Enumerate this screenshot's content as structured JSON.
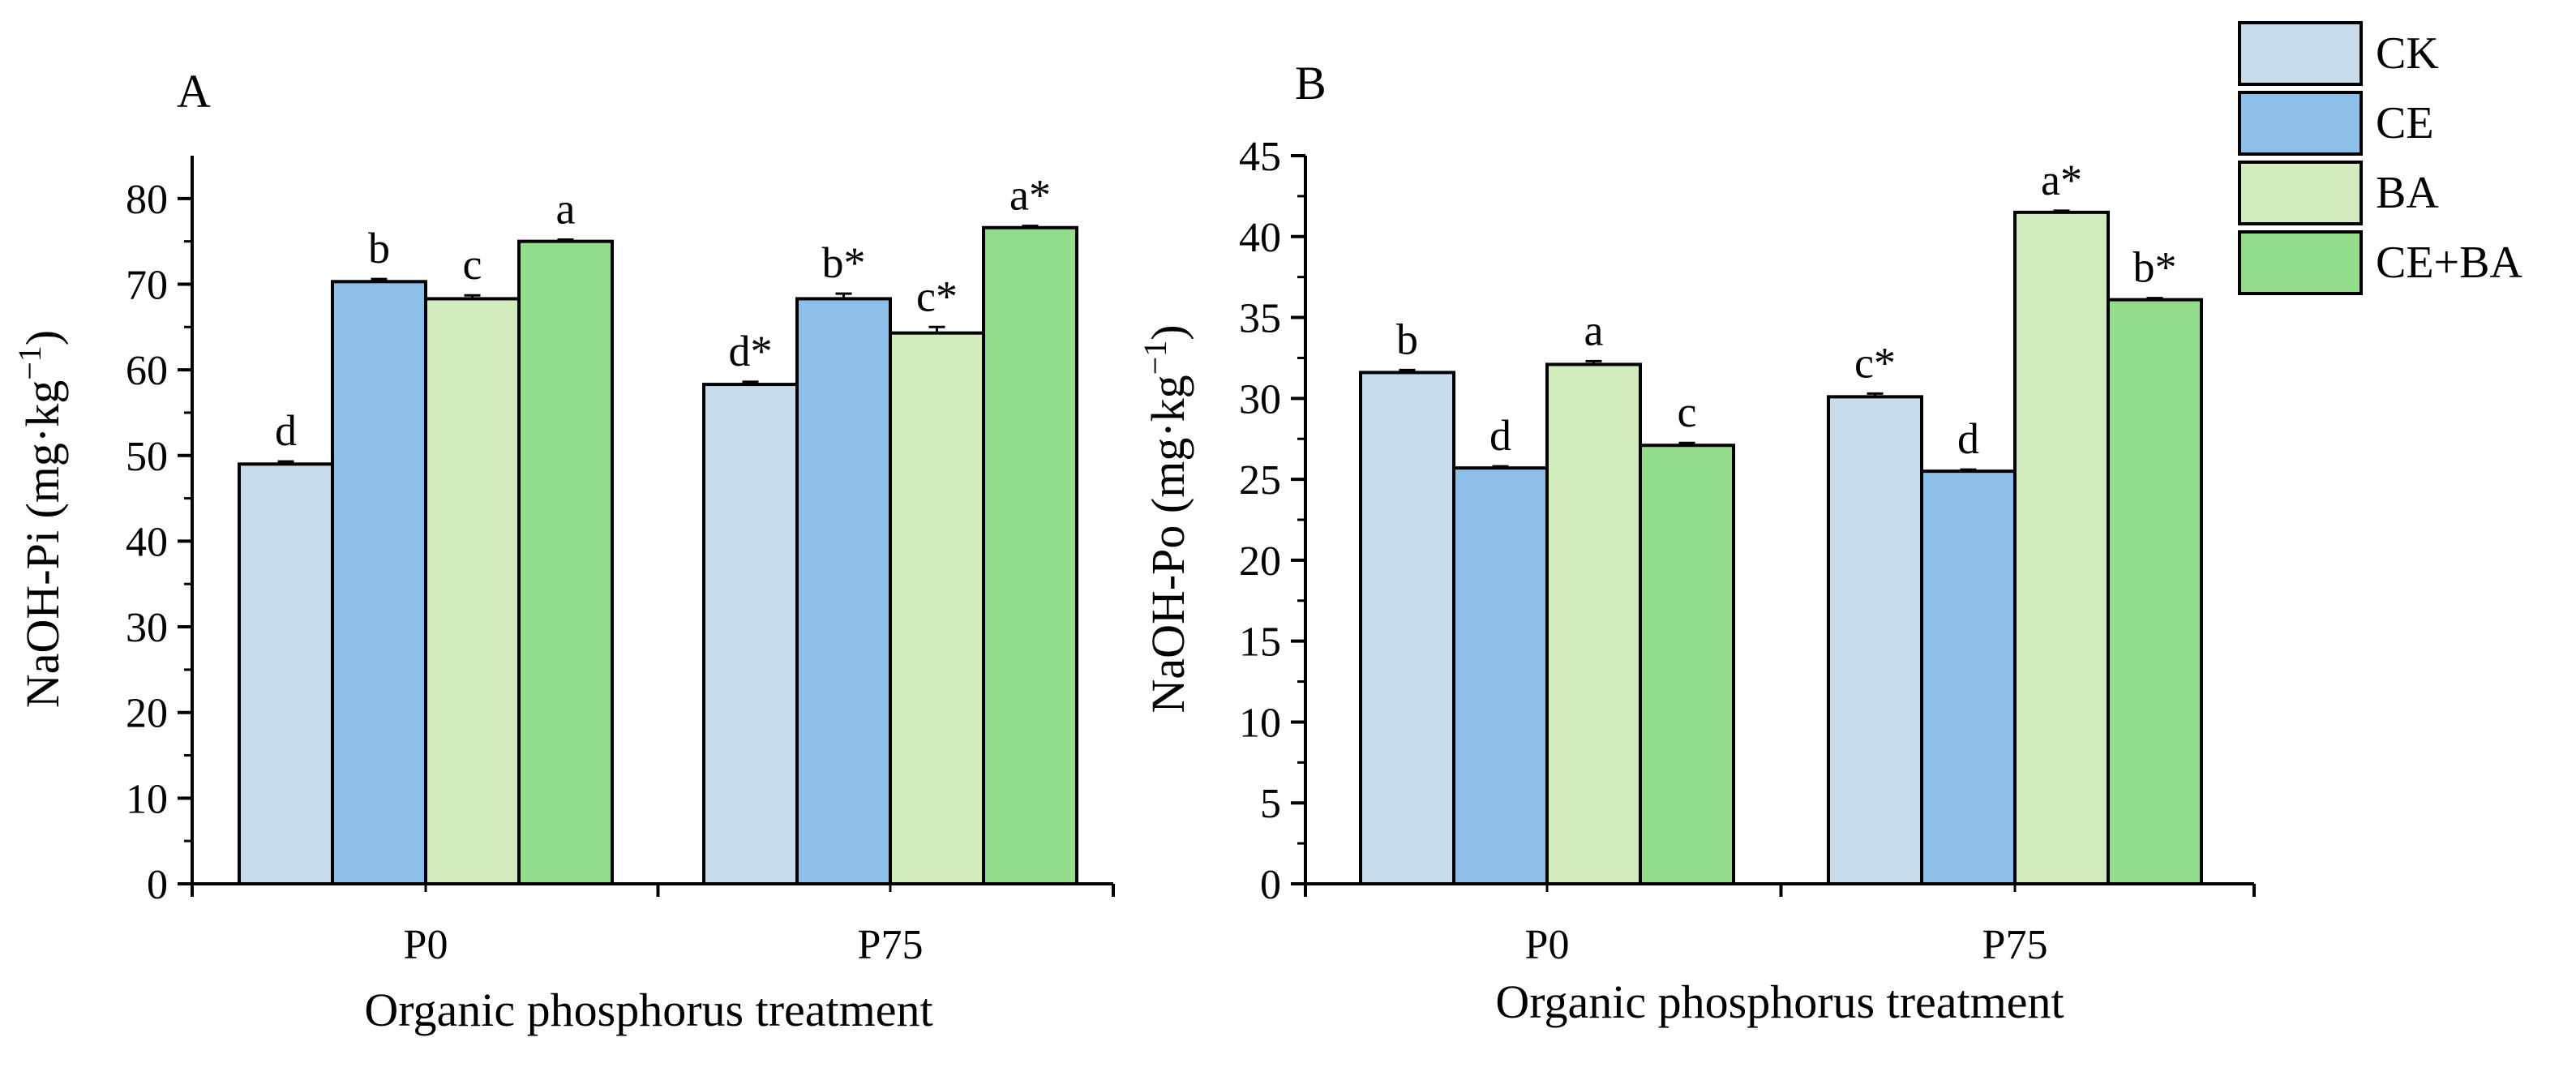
{
  "chart_data": [
    {
      "type": "bar",
      "panel": "A",
      "categories": [
        "P0",
        "P75"
      ],
      "xlabel": "Organic phosphorus treatment",
      "ylabel_main": "NaOH-Pi (mg·kg",
      "ylabel_sup": "−1",
      "ylabel_close": ")",
      "ylim": [
        0,
        85
      ],
      "yticks": [
        0,
        10,
        20,
        30,
        40,
        50,
        60,
        70,
        80
      ],
      "series": [
        {
          "name": "CK",
          "values": [
            49.0,
            58.3
          ],
          "errors": [
            0.3,
            0.3
          ],
          "labels": [
            "d",
            "d*"
          ]
        },
        {
          "name": "CE",
          "values": [
            70.3,
            68.3
          ],
          "errors": [
            0.3,
            0.6
          ],
          "labels": [
            "b",
            "b*"
          ]
        },
        {
          "name": "BA",
          "values": [
            68.3,
            64.3
          ],
          "errors": [
            0.4,
            0.7
          ],
          "labels": [
            "c",
            "c*"
          ]
        },
        {
          "name": "CE+BA",
          "values": [
            75.0,
            76.6
          ],
          "errors": [
            0.2,
            0.2
          ],
          "labels": [
            "a",
            "a*"
          ]
        }
      ]
    },
    {
      "type": "bar",
      "panel": "B",
      "categories": [
        "P0",
        "P75"
      ],
      "xlabel": "Organic phosphorus treatment",
      "ylabel_main": "NaOH-Po (mg·kg",
      "ylabel_sup": "−1",
      "ylabel_close": ")",
      "ylim": [
        0,
        45
      ],
      "yticks": [
        0,
        5,
        10,
        15,
        20,
        25,
        30,
        35,
        40,
        45
      ],
      "series": [
        {
          "name": "CK",
          "values": [
            31.6,
            30.1
          ],
          "errors": [
            0.15,
            0.2
          ],
          "labels": [
            "b",
            "c*"
          ]
        },
        {
          "name": "CE",
          "values": [
            25.7,
            25.5
          ],
          "errors": [
            0.1,
            0.1
          ],
          "labels": [
            "d",
            "d"
          ]
        },
        {
          "name": "BA",
          "values": [
            32.1,
            41.5
          ],
          "errors": [
            0.2,
            0.1
          ],
          "labels": [
            "a",
            "a*"
          ]
        },
        {
          "name": "CE+BA",
          "values": [
            27.1,
            36.1
          ],
          "errors": [
            0.15,
            0.1
          ],
          "labels": [
            "c",
            "b*"
          ]
        }
      ]
    }
  ],
  "legend": {
    "items": [
      {
        "label": "CK",
        "color": "#c8dceb"
      },
      {
        "label": "CE",
        "color": "#8cc0e8"
      },
      {
        "label": "BA",
        "color": "#d3ecbd"
      },
      {
        "label": "CE+BA",
        "color": "#92dc8b"
      }
    ]
  },
  "colors": {
    "axis": "#000000",
    "bar_stroke": "#000000"
  }
}
